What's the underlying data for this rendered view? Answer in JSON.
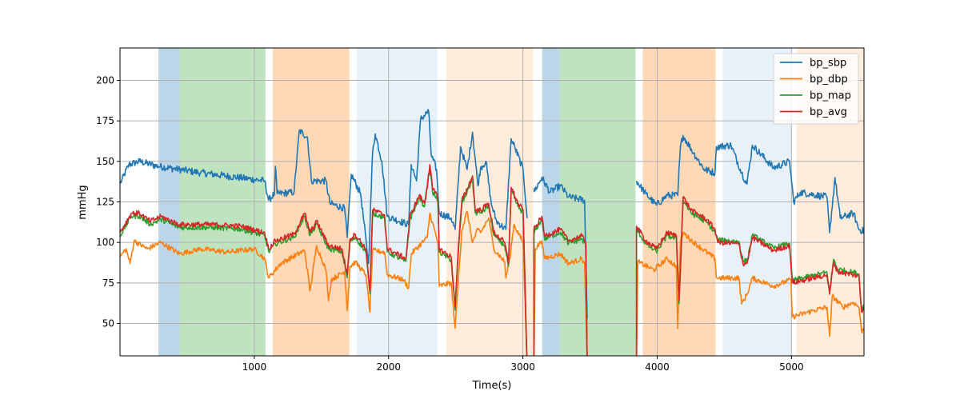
{
  "chart_data": {
    "type": "line",
    "title": "",
    "xlabel": "Time(s)",
    "ylabel": "mmHg",
    "xlim": [
      0,
      5540
    ],
    "ylim": [
      30,
      220
    ],
    "xticks": [
      1000,
      2000,
      3000,
      4000,
      5000
    ],
    "yticks": [
      50,
      75,
      100,
      125,
      150,
      175,
      200
    ],
    "grid": true,
    "legend_position": "top-right",
    "spans": [
      {
        "start": 286,
        "end": 446,
        "color": "#1f77b4",
        "alpha": 0.3
      },
      {
        "start": 446,
        "end": 1083,
        "color": "#2ca02c",
        "alpha": 0.3
      },
      {
        "start": 1137,
        "end": 1708,
        "color": "#ff7f0e",
        "alpha": 0.3
      },
      {
        "start": 1762,
        "end": 2363,
        "color": "#1f77b4",
        "alpha": 0.1
      },
      {
        "start": 2429,
        "end": 3077,
        "color": "#ff7f0e",
        "alpha": 0.15
      },
      {
        "start": 3143,
        "end": 3274,
        "color": "#1f77b4",
        "alpha": 0.3
      },
      {
        "start": 3274,
        "end": 3839,
        "color": "#2ca02c",
        "alpha": 0.3
      },
      {
        "start": 3893,
        "end": 4435,
        "color": "#ff7f0e",
        "alpha": 0.3
      },
      {
        "start": 4488,
        "end": 5000,
        "color": "#1f77b4",
        "alpha": 0.1
      },
      {
        "start": 5036,
        "end": 5540,
        "color": "#ff7f0e",
        "alpha": 0.15
      }
    ],
    "series": [
      {
        "name": "bp_sbp",
        "color": "#1f77b4",
        "points": [
          [
            0,
            136
          ],
          [
            66,
            148
          ],
          [
            145,
            150
          ],
          [
            284,
            147
          ],
          [
            601,
            143
          ],
          [
            1077,
            138
          ],
          [
            1107,
            126
          ],
          [
            1150,
            130
          ],
          [
            1157,
            147
          ],
          [
            1170,
            130
          ],
          [
            1296,
            131
          ],
          [
            1335,
            169
          ],
          [
            1395,
            165
          ],
          [
            1425,
            138
          ],
          [
            1534,
            138
          ],
          [
            1563,
            124
          ],
          [
            1673,
            121
          ],
          [
            1692,
            103
          ],
          [
            1722,
            142
          ],
          [
            1792,
            130
          ],
          [
            1851,
            87
          ],
          [
            1881,
            156
          ],
          [
            1901,
            167
          ],
          [
            1950,
            150
          ],
          [
            1990,
            116
          ],
          [
            2149,
            111
          ],
          [
            2169,
            148
          ],
          [
            2208,
            138
          ],
          [
            2238,
            176
          ],
          [
            2298,
            181
          ],
          [
            2317,
            154
          ],
          [
            2357,
            145
          ],
          [
            2377,
            118
          ],
          [
            2466,
            115
          ],
          [
            2496,
            108
          ],
          [
            2536,
            159
          ],
          [
            2585,
            145
          ],
          [
            2625,
            168
          ],
          [
            2665,
            135
          ],
          [
            2685,
            146
          ],
          [
            2725,
            150
          ],
          [
            2764,
            124
          ],
          [
            2804,
            113
          ],
          [
            2873,
            108
          ],
          [
            2913,
            164
          ],
          [
            2943,
            158
          ],
          [
            3002,
            145
          ],
          [
            3032,
            115
          ],
          [
            3040,
            null
          ],
          [
            3082,
            131
          ],
          [
            3141,
            140
          ],
          [
            3201,
            131
          ],
          [
            3280,
            135
          ],
          [
            3340,
            128
          ],
          [
            3459,
            126
          ],
          [
            3479,
            53
          ],
          [
            3485,
            null
          ],
          [
            3846,
            138
          ],
          [
            3915,
            130
          ],
          [
            3994,
            123
          ],
          [
            4074,
            129
          ],
          [
            4153,
            129
          ],
          [
            4173,
            159
          ],
          [
            4193,
            166
          ],
          [
            4272,
            155
          ],
          [
            4352,
            145
          ],
          [
            4431,
            143
          ],
          [
            4441,
            159
          ],
          [
            4550,
            160
          ],
          [
            4629,
            143
          ],
          [
            4669,
            136
          ],
          [
            4709,
            160
          ],
          [
            4867,
            146
          ],
          [
            4986,
            150
          ],
          [
            5016,
            125
          ],
          [
            5066,
            131
          ],
          [
            5264,
            128
          ],
          [
            5284,
            106
          ],
          [
            5324,
            140
          ],
          [
            5363,
            115
          ],
          [
            5462,
            118
          ],
          [
            5502,
            108
          ],
          [
            5540,
            107
          ]
        ]
      },
      {
        "name": "bp_dbp",
        "color": "#ff7f0e",
        "points": [
          [
            0,
            91
          ],
          [
            45,
            96
          ],
          [
            75,
            87
          ],
          [
            105,
            101
          ],
          [
            204,
            96
          ],
          [
            304,
            100
          ],
          [
            442,
            93
          ],
          [
            601,
            96
          ],
          [
            800,
            94
          ],
          [
            998,
            96
          ],
          [
            1077,
            90
          ],
          [
            1107,
            78
          ],
          [
            1196,
            87
          ],
          [
            1375,
            95
          ],
          [
            1415,
            70
          ],
          [
            1464,
            98
          ],
          [
            1534,
            83
          ],
          [
            1553,
            64
          ],
          [
            1573,
            77
          ],
          [
            1673,
            82
          ],
          [
            1692,
            58
          ],
          [
            1712,
            85
          ],
          [
            1752,
            88
          ],
          [
            1831,
            80
          ],
          [
            1861,
            57
          ],
          [
            1881,
            95
          ],
          [
            1970,
            94
          ],
          [
            1990,
            80
          ],
          [
            2109,
            77
          ],
          [
            2149,
            72
          ],
          [
            2169,
            93
          ],
          [
            2288,
            103
          ],
          [
            2307,
            118
          ],
          [
            2367,
            100
          ],
          [
            2377,
            73
          ],
          [
            2466,
            75
          ],
          [
            2496,
            47
          ],
          [
            2526,
            85
          ],
          [
            2546,
            108
          ],
          [
            2585,
            119
          ],
          [
            2625,
            100
          ],
          [
            2665,
            108
          ],
          [
            2685,
            106
          ],
          [
            2745,
            115
          ],
          [
            2784,
            96
          ],
          [
            2864,
            88
          ],
          [
            2873,
            78
          ],
          [
            2903,
            90
          ],
          [
            2933,
            111
          ],
          [
            3002,
            100
          ],
          [
            3026,
            37
          ],
          [
            3032,
            20
          ],
          [
            3082,
            20
          ],
          [
            3092,
            96
          ],
          [
            3141,
            101
          ],
          [
            3161,
            90
          ],
          [
            3280,
            93
          ],
          [
            3340,
            87
          ],
          [
            3439,
            90
          ],
          [
            3459,
            87
          ],
          [
            3479,
            25
          ],
          [
            3485,
            null
          ],
          [
            3846,
            25
          ],
          [
            3856,
            88
          ],
          [
            3975,
            83
          ],
          [
            4074,
            90
          ],
          [
            4143,
            85
          ],
          [
            4153,
            47
          ],
          [
            4173,
            100
          ],
          [
            4193,
            106
          ],
          [
            4272,
            100
          ],
          [
            4431,
            90
          ],
          [
            4441,
            78
          ],
          [
            4609,
            78
          ],
          [
            4629,
            62
          ],
          [
            4669,
            68
          ],
          [
            4709,
            78
          ],
          [
            4867,
            73
          ],
          [
            4996,
            77
          ],
          [
            5006,
            54
          ],
          [
            5165,
            58
          ],
          [
            5264,
            60
          ],
          [
            5284,
            42
          ],
          [
            5304,
            67
          ],
          [
            5383,
            60
          ],
          [
            5462,
            63
          ],
          [
            5502,
            60
          ],
          [
            5522,
            45
          ],
          [
            5540,
            47
          ]
        ]
      },
      {
        "name": "bp_map",
        "color": "#2ca02c",
        "points": []
      },
      {
        "name": "bp_avg",
        "color": "#d62728",
        "points": [
          [
            0,
            106
          ],
          [
            85,
            118
          ],
          [
            145,
            118
          ],
          [
            224,
            113
          ],
          [
            304,
            116
          ],
          [
            442,
            111
          ],
          [
            700,
            111
          ],
          [
            899,
            110
          ],
          [
            1077,
            106
          ],
          [
            1107,
            96
          ],
          [
            1157,
            101
          ],
          [
            1296,
            105
          ],
          [
            1375,
            118
          ],
          [
            1415,
            106
          ],
          [
            1464,
            113
          ],
          [
            1553,
            98
          ],
          [
            1653,
            96
          ],
          [
            1692,
            80
          ],
          [
            1712,
            102
          ],
          [
            1752,
            105
          ],
          [
            1831,
            96
          ],
          [
            1861,
            70
          ],
          [
            1881,
            120
          ],
          [
            1970,
            117
          ],
          [
            1990,
            96
          ],
          [
            2129,
            90
          ],
          [
            2159,
            116
          ],
          [
            2228,
            129
          ],
          [
            2268,
            124
          ],
          [
            2307,
            148
          ],
          [
            2327,
            133
          ],
          [
            2367,
            128
          ],
          [
            2377,
            96
          ],
          [
            2466,
            91
          ],
          [
            2496,
            60
          ],
          [
            2516,
            92
          ],
          [
            2546,
            126
          ],
          [
            2585,
            133
          ],
          [
            2625,
            141
          ],
          [
            2645,
            120
          ],
          [
            2685,
            120
          ],
          [
            2745,
            124
          ],
          [
            2784,
            106
          ],
          [
            2864,
            100
          ],
          [
            2893,
            87
          ],
          [
            2913,
            134
          ],
          [
            2963,
            124
          ],
          [
            3002,
            120
          ],
          [
            3026,
            40
          ],
          [
            3032,
            20
          ],
          [
            3082,
            20
          ],
          [
            3082,
            108
          ],
          [
            3141,
            116
          ],
          [
            3161,
            104
          ],
          [
            3280,
            108
          ],
          [
            3340,
            101
          ],
          [
            3439,
            104
          ],
          [
            3469,
            100
          ],
          [
            3479,
            25
          ],
          [
            3485,
            null
          ],
          [
            3846,
            25
          ],
          [
            3846,
            110
          ],
          [
            3915,
            101
          ],
          [
            3994,
            96
          ],
          [
            4074,
            106
          ],
          [
            4143,
            104
          ],
          [
            4163,
            64
          ],
          [
            4193,
            128
          ],
          [
            4252,
            120
          ],
          [
            4371,
            114
          ],
          [
            4431,
            108
          ],
          [
            4451,
            100
          ],
          [
            4609,
            99
          ],
          [
            4639,
            87
          ],
          [
            4669,
            87
          ],
          [
            4709,
            103
          ],
          [
            4867,
            95
          ],
          [
            4986,
            98
          ],
          [
            5006,
            75
          ],
          [
            5264,
            80
          ],
          [
            5284,
            68
          ],
          [
            5314,
            88
          ],
          [
            5343,
            82
          ],
          [
            5462,
            80
          ],
          [
            5502,
            79
          ],
          [
            5522,
            57
          ],
          [
            5540,
            60
          ]
        ]
      }
    ]
  }
}
